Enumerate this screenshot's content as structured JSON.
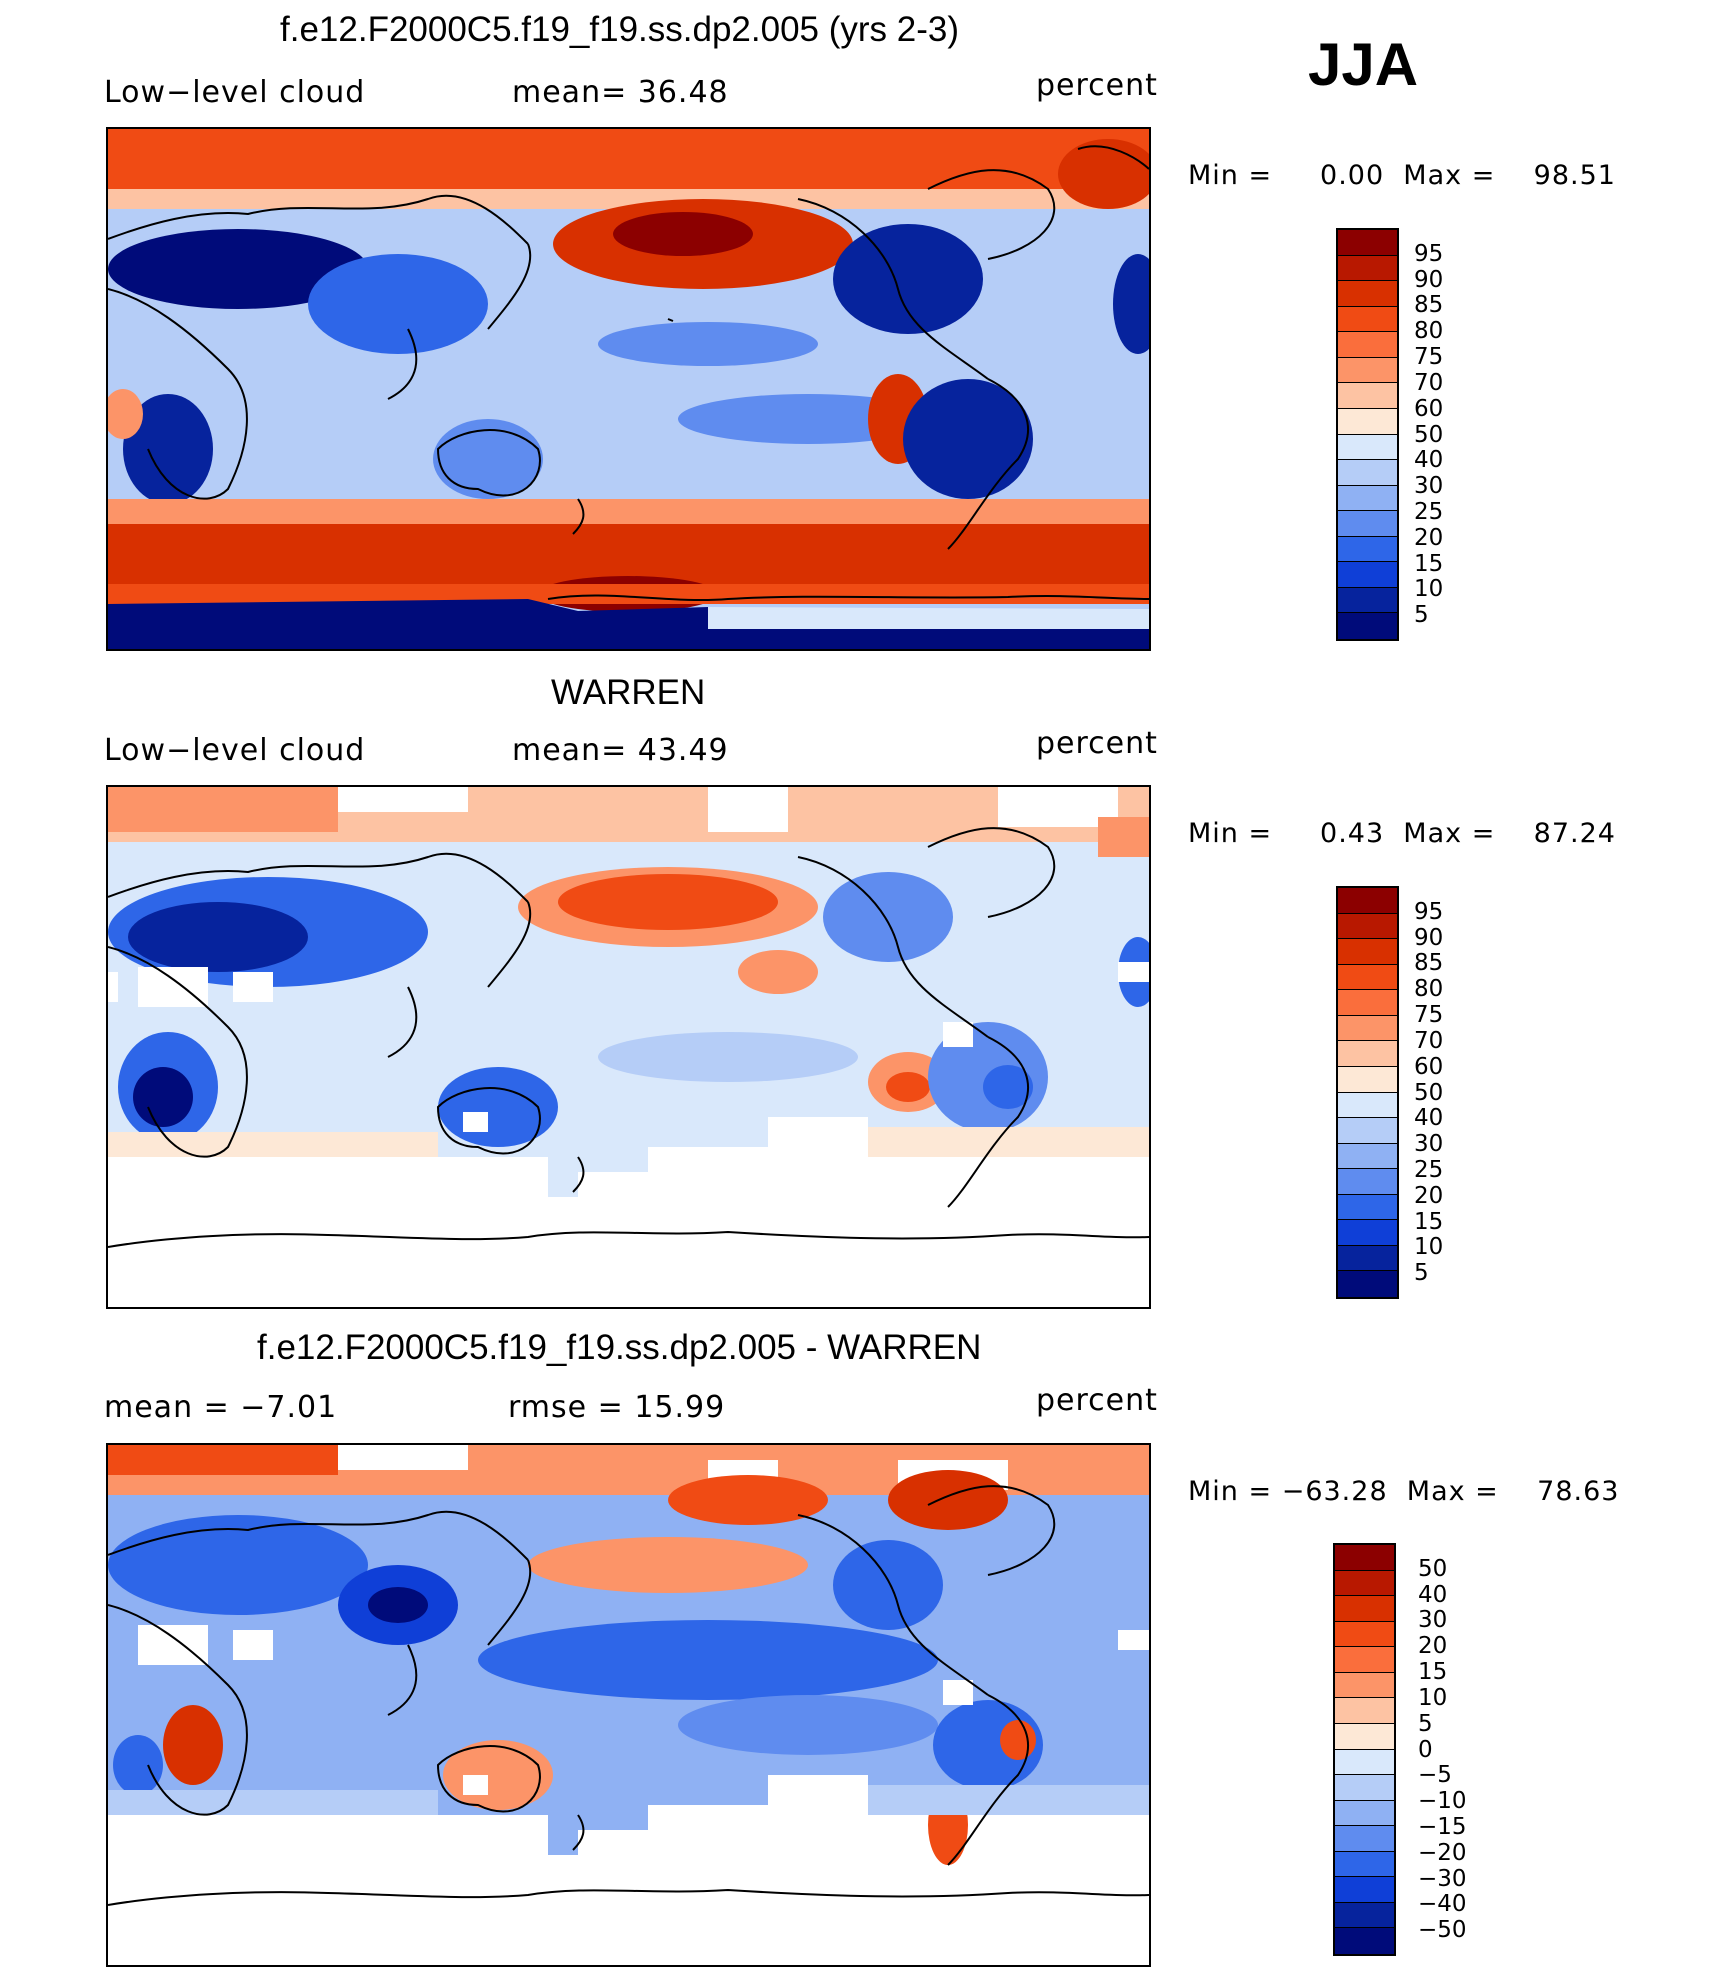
{
  "season": "JJA",
  "panels": [
    {
      "id": "model",
      "title": "f.e12.F2000C5.f19_f19.ss.dp2.005 (yrs 2-3)",
      "left_label": "Low−level cloud",
      "center_label": "mean=   36.48",
      "units": "percent",
      "minmax": "Min =     0.00  Max =    98.51",
      "colorbar_labels": [
        "95",
        "90",
        "85",
        "80",
        "75",
        "70",
        "60",
        "50",
        "40",
        "30",
        "25",
        "20",
        "15",
        "10",
        "5"
      ]
    },
    {
      "id": "obs",
      "title": "WARREN",
      "left_label": "Low−level cloud",
      "center_label": "mean=   43.49",
      "units": "percent",
      "minmax": "Min =     0.43  Max =    87.24",
      "colorbar_labels": [
        "95",
        "90",
        "85",
        "80",
        "75",
        "70",
        "60",
        "50",
        "40",
        "30",
        "25",
        "20",
        "15",
        "10",
        "5"
      ]
    },
    {
      "id": "diff",
      "title": "f.e12.F2000C5.f19_f19.ss.dp2.005 - WARREN",
      "left_label": "mean =   −7.01",
      "center_label": "rmse =    15.99",
      "units": "percent",
      "minmax": "Min = −63.28  Max =    78.63",
      "colorbar_labels": [
        "50",
        "40",
        "30",
        "20",
        "15",
        "10",
        "5",
        "0",
        "−5",
        "−10",
        "−15",
        "−20",
        "−30",
        "−40",
        "−50"
      ]
    }
  ],
  "colors": {
    "scale": [
      "#8c0000",
      "#b81800",
      "#d83000",
      "#f04b14",
      "#fa6e3c",
      "#fc9468",
      "#fdc3a3",
      "#fde8d6",
      "#d9e8fb",
      "#b5cdf7",
      "#8fb1f3",
      "#5f8cef",
      "#2e66e8",
      "#0f3fd7",
      "#06239d",
      "#000b7a"
    ]
  },
  "chart_data": [
    {
      "type": "heatmap",
      "title": "f.e12.F2000C5.f19_f19.ss.dp2.005 (yrs 2-3)",
      "variable": "Low-level cloud",
      "units": "percent",
      "mean": 36.48,
      "min": 0.0,
      "max": 98.51,
      "levels": [
        5,
        10,
        15,
        20,
        25,
        30,
        40,
        50,
        60,
        70,
        75,
        80,
        85,
        90,
        95
      ]
    },
    {
      "type": "heatmap",
      "title": "WARREN",
      "variable": "Low-level cloud",
      "units": "percent",
      "mean": 43.49,
      "min": 0.43,
      "max": 87.24,
      "levels": [
        5,
        10,
        15,
        20,
        25,
        30,
        40,
        50,
        60,
        70,
        75,
        80,
        85,
        90,
        95
      ]
    },
    {
      "type": "heatmap",
      "title": "f.e12.F2000C5.f19_f19.ss.dp2.005 - WARREN",
      "units": "percent",
      "mean": -7.01,
      "rmse": 15.99,
      "min": -63.28,
      "max": 78.63,
      "levels": [
        -50,
        -40,
        -30,
        -20,
        -15,
        -10,
        -5,
        0,
        5,
        10,
        15,
        20,
        30,
        40,
        50
      ]
    }
  ]
}
